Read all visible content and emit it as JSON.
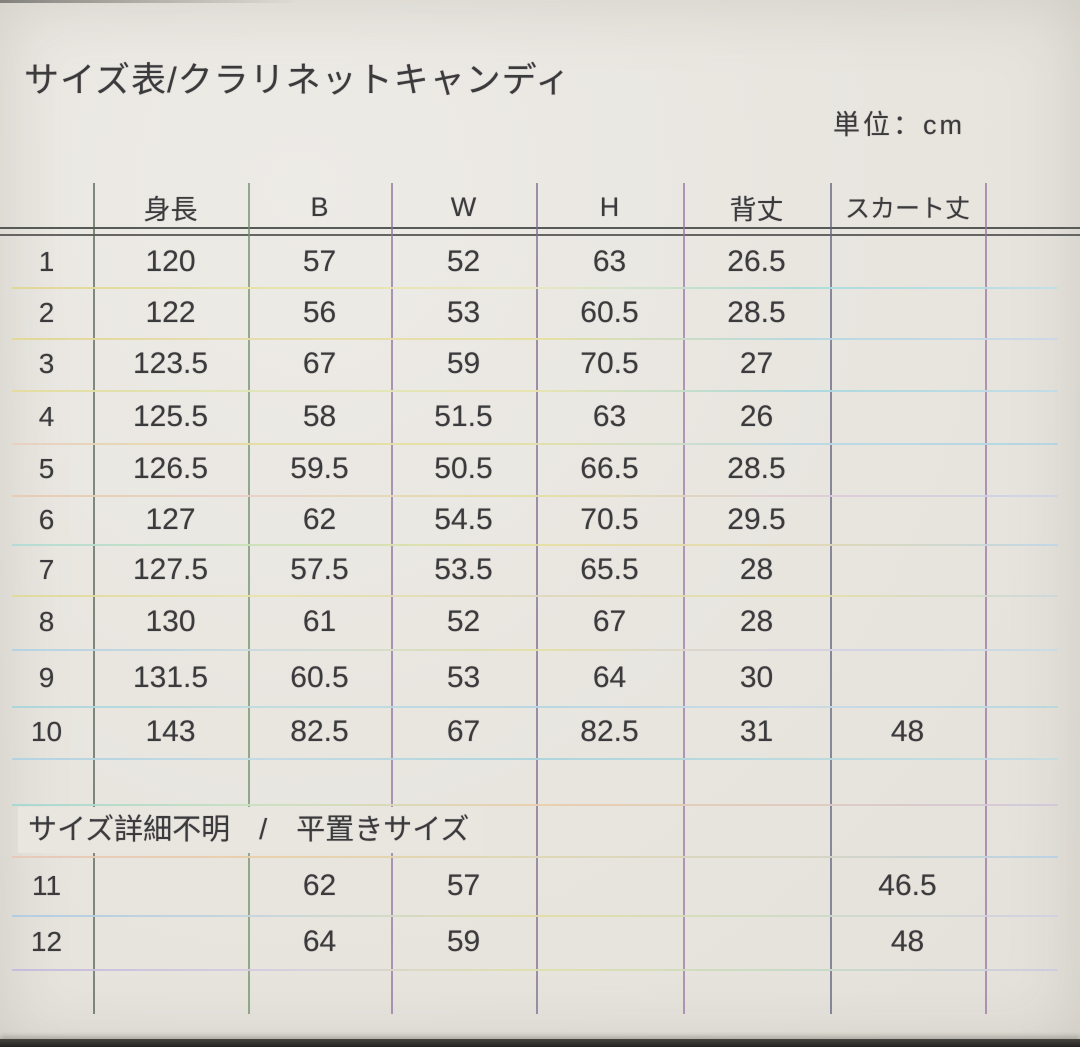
{
  "title": "サイズ表/クラリネットキャンディ",
  "unit_label": "単位：cm",
  "colors": {
    "paper": "#e9e6e0",
    "ink": "#3b3a3c",
    "photo_edge": "#36342f"
  },
  "table": {
    "columns": [
      "",
      "身長",
      "B",
      "W",
      "H",
      "背丈",
      "スカート丈"
    ],
    "rows": [
      [
        "1",
        "120",
        "57",
        "52",
        "63",
        "26.5",
        ""
      ],
      [
        "2",
        "122",
        "56",
        "53",
        "60.5",
        "28.5",
        ""
      ],
      [
        "3",
        "123.5",
        "67",
        "59",
        "70.5",
        "27",
        ""
      ],
      [
        "4",
        "125.5",
        "58",
        "51.5",
        "63",
        "26",
        ""
      ],
      [
        "5",
        "126.5",
        "59.5",
        "50.5",
        "66.5",
        "28.5",
        ""
      ],
      [
        "6",
        "127",
        "62",
        "54.5",
        "70.5",
        "29.5",
        ""
      ],
      [
        "7",
        "127.5",
        "57.5",
        "53.5",
        "65.5",
        "28",
        ""
      ],
      [
        "8",
        "130",
        "61",
        "52",
        "67",
        "28",
        ""
      ],
      [
        "9",
        "131.5",
        "60.5",
        "53",
        "64",
        "30",
        ""
      ],
      [
        "10",
        "143",
        "82.5",
        "67",
        "82.5",
        "31",
        "48"
      ],
      [
        "11",
        "",
        "62",
        "57",
        "",
        "",
        "46.5"
      ],
      [
        "12",
        "",
        "64",
        "59",
        "",
        "",
        "48"
      ]
    ],
    "section_label": "サイズ詳細不明　/　平置きサイズ"
  }
}
